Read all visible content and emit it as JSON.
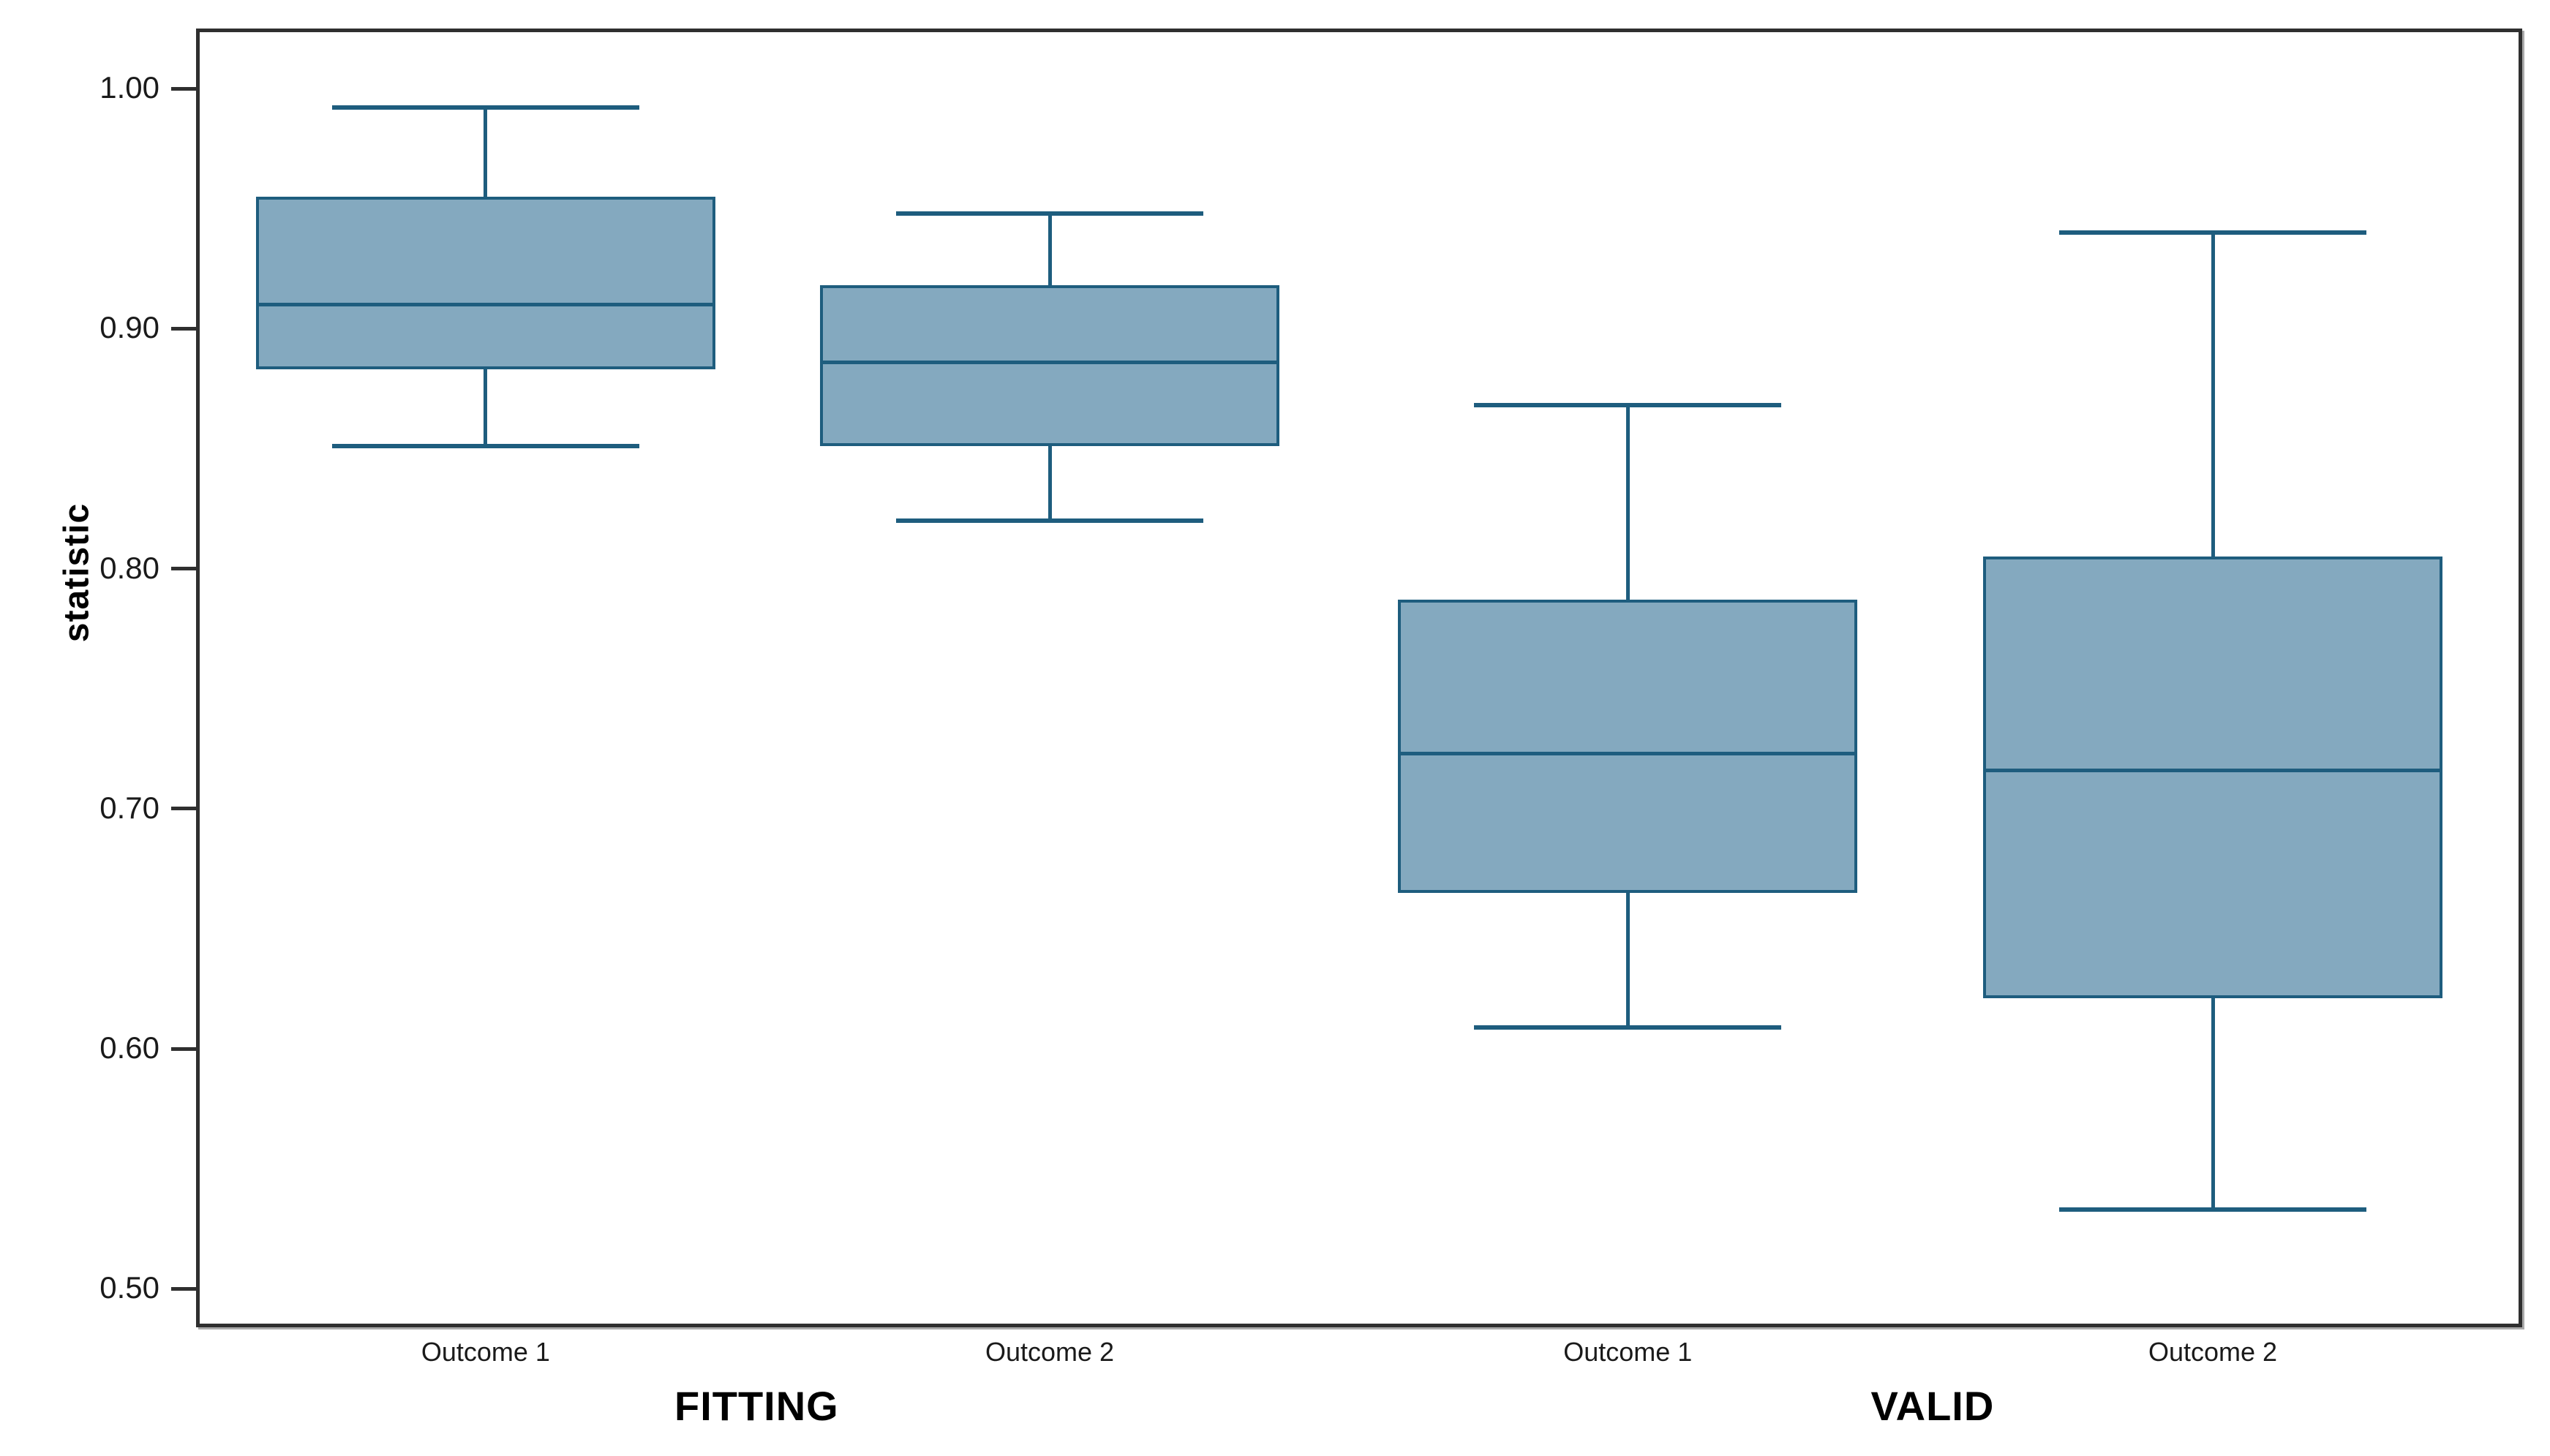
{
  "figure": {
    "y_axis_title": "statistic",
    "background_color": "#ffffff"
  },
  "colors": {
    "box_fill": "#84a9bf",
    "box_stroke": "#1e5d7e",
    "frame": "#2f2f2f",
    "tick_text": "#1a1a1a"
  },
  "chart_data": {
    "type": "boxplot",
    "title": "",
    "xlabel": "",
    "ylabel": "statistic",
    "grid": false,
    "legend": "none",
    "groups": [
      "FITTING",
      "VALID"
    ],
    "y_tick_labels": [
      "1.00",
      "0.90",
      "0.80",
      "0.70",
      "0.60",
      "0.50"
    ],
    "y_tick_values": [
      1.0,
      0.9,
      0.8,
      0.7,
      0.6,
      0.5
    ],
    "ylim": [
      0.484,
      1.025
    ],
    "series": [
      {
        "group": "FITTING",
        "category": "Outcome 1",
        "whisker_low": 0.851,
        "q1": 0.883,
        "median": 0.91,
        "q3": 0.955,
        "whisker_high": 0.992
      },
      {
        "group": "FITTING",
        "category": "Outcome 2",
        "whisker_low": 0.82,
        "q1": 0.851,
        "median": 0.886,
        "q3": 0.918,
        "whisker_high": 0.948
      },
      {
        "group": "VALID",
        "category": "Outcome 1",
        "whisker_low": 0.609,
        "q1": 0.665,
        "median": 0.723,
        "q3": 0.787,
        "whisker_high": 0.868
      },
      {
        "group": "VALID",
        "category": "Outcome 2",
        "whisker_low": 0.533,
        "q1": 0.621,
        "median": 0.716,
        "q3": 0.805,
        "whisker_high": 0.94
      }
    ],
    "layout": {
      "slot_centers_pct": [
        12.45,
        36.7,
        61.55,
        86.7
      ],
      "group_label_centers_pct": [
        24.1,
        74.65
      ],
      "box_width_pct": 19.75,
      "cap_width_pct": 13.2
    }
  }
}
